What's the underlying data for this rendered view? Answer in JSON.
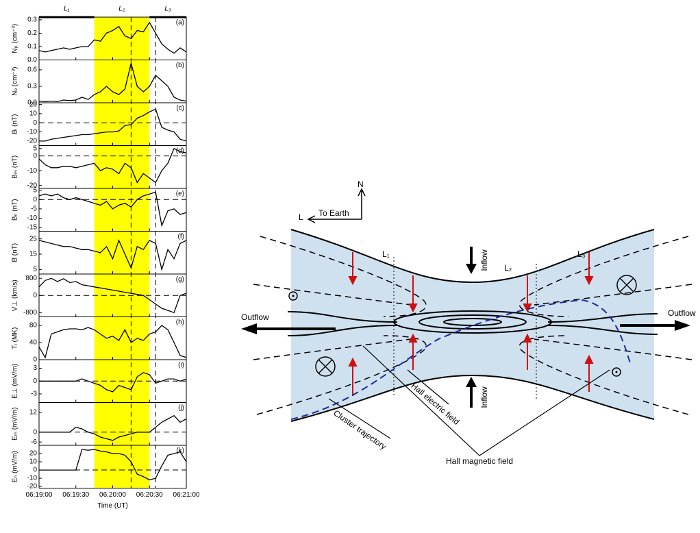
{
  "chart_data": [
    {
      "type": "line",
      "tag": "(a)",
      "ylabel": "Nₚ (cm⁻³)",
      "color": "#000000",
      "xlim": [
        "06:19:00",
        "06:21:00"
      ],
      "ylim": [
        0,
        0.32
      ],
      "yticks": [
        {
          "value": 0,
          "label": "0.0"
        },
        0.1,
        0.2,
        0.3
      ],
      "zero_line": false,
      "x": [
        "06:19:00",
        "06:19:05",
        "06:19:10",
        "06:19:15",
        "06:19:20",
        "06:19:25",
        "06:19:30",
        "06:19:35",
        "06:19:40",
        "06:19:45",
        "06:19:50",
        "06:19:55",
        "06:20:00",
        "06:20:05",
        "06:20:10",
        "06:20:15",
        "06:20:20",
        "06:20:25",
        "06:20:30",
        "06:20:35",
        "06:20:40",
        "06:20:45",
        "06:20:50",
        "06:20:55",
        "06:21:00"
      ],
      "values": [
        0.07,
        0.06,
        0.07,
        0.08,
        0.09,
        0.08,
        0.09,
        0.1,
        0.1,
        0.15,
        0.14,
        0.2,
        0.22,
        0.25,
        0.18,
        0.16,
        0.22,
        0.21,
        0.28,
        0.2,
        0.12,
        0.08,
        0.05,
        0.09,
        0.06
      ]
    },
    {
      "type": "line",
      "tag": "(b)",
      "ylabel": "Nₑ (cm⁻³)",
      "color": "#000000",
      "xlim": [
        "06:19:00",
        "06:21:00"
      ],
      "ylim": [
        0,
        0.78
      ],
      "yticks": [
        {
          "value": 0,
          "label": "0.0"
        },
        0.3,
        0.6
      ],
      "zero_line": false,
      "x": [
        "06:19:00",
        "06:19:05",
        "06:19:10",
        "06:19:15",
        "06:19:20",
        "06:19:25",
        "06:19:30",
        "06:19:35",
        "06:19:40",
        "06:19:45",
        "06:19:50",
        "06:19:55",
        "06:20:00",
        "06:20:05",
        "06:20:10",
        "06:20:15",
        "06:20:20",
        "06:20:25",
        "06:20:30",
        "06:20:35",
        "06:20:40",
        "06:20:45",
        "06:20:50",
        "06:20:55",
        "06:21:00"
      ],
      "values": [
        0.03,
        0.02,
        0.03,
        0.02,
        0.05,
        0.04,
        0.05,
        0.1,
        0.06,
        0.15,
        0.2,
        0.3,
        0.2,
        0.15,
        0.25,
        0.72,
        0.3,
        0.2,
        0.3,
        0.5,
        0.4,
        0.3,
        0.1,
        0.05,
        0.03
      ]
    },
    {
      "type": "line",
      "tag": "(c)",
      "ylabel": "Bₗ (nT)",
      "color": "#000000",
      "xlim": [
        "06:19:00",
        "06:21:00"
      ],
      "ylim": [
        -25,
        22
      ],
      "yticks": [
        -20,
        -10,
        0,
        10,
        20
      ],
      "zero_line": true,
      "x": [
        "06:19:00",
        "06:19:05",
        "06:19:10",
        "06:19:15",
        "06:19:20",
        "06:19:25",
        "06:19:30",
        "06:19:35",
        "06:19:40",
        "06:19:45",
        "06:19:50",
        "06:19:55",
        "06:20:00",
        "06:20:05",
        "06:20:10",
        "06:20:15",
        "06:20:20",
        "06:20:25",
        "06:20:30",
        "06:20:35",
        "06:20:40",
        "06:20:45",
        "06:20:50",
        "06:20:55",
        "06:21:00"
      ],
      "values": [
        -20,
        -20,
        -18,
        -17,
        -16,
        -15,
        -14,
        -13,
        -13,
        -12,
        -11,
        -10,
        -10,
        -9,
        -3,
        -2,
        5,
        8,
        12,
        15,
        -5,
        -8,
        -10,
        -18,
        -20
      ]
    },
    {
      "type": "line",
      "tag": "(d)",
      "ylabel": "Bₘ (nT)",
      "color": "#000000",
      "xlim": [
        "06:19:00",
        "06:21:00"
      ],
      "ylim": [
        -22,
        7
      ],
      "yticks": [
        -20,
        -10,
        0,
        5
      ],
      "zero_line": true,
      "x": [
        "06:19:00",
        "06:19:05",
        "06:19:10",
        "06:19:15",
        "06:19:20",
        "06:19:25",
        "06:19:30",
        "06:19:35",
        "06:19:40",
        "06:19:45",
        "06:19:50",
        "06:19:55",
        "06:20:00",
        "06:20:05",
        "06:20:10",
        "06:20:15",
        "06:20:20",
        "06:20:25",
        "06:20:30",
        "06:20:35",
        "06:20:40",
        "06:20:45",
        "06:20:50",
        "06:20:55",
        "06:21:00"
      ],
      "values": [
        -2,
        -6,
        -8,
        -8,
        -7,
        -7,
        -8,
        -7,
        -6,
        -5,
        -10,
        -8,
        -9,
        -12,
        -5,
        -8,
        -18,
        -12,
        -15,
        -18,
        -10,
        -5,
        5,
        3,
        2
      ]
    },
    {
      "type": "line",
      "tag": "(e)",
      "ylabel": "Bₙ (nT)",
      "color": "#000000",
      "xlim": [
        "06:19:00",
        "06:21:00"
      ],
      "ylim": [
        -17,
        6
      ],
      "yticks": [
        -15,
        -10,
        -5,
        0,
        5
      ],
      "zero_line": true,
      "x": [
        "06:19:00",
        "06:19:05",
        "06:19:10",
        "06:19:15",
        "06:19:20",
        "06:19:25",
        "06:19:30",
        "06:19:35",
        "06:19:40",
        "06:19:45",
        "06:19:50",
        "06:19:55",
        "06:20:00",
        "06:20:05",
        "06:20:10",
        "06:20:15",
        "06:20:20",
        "06:20:25",
        "06:20:30",
        "06:20:35",
        "06:20:40",
        "06:20:45",
        "06:20:50",
        "06:20:55",
        "06:21:00"
      ],
      "values": [
        2,
        3,
        2,
        3,
        1,
        0,
        1,
        0,
        -1,
        -2,
        -3,
        -1,
        -5,
        -3,
        -2,
        -4,
        0,
        2,
        3,
        4,
        -14,
        -6,
        -5,
        -8,
        -7
      ]
    },
    {
      "type": "line",
      "tag": "(f)",
      "ylabel": "B (nT)",
      "color": "#000000",
      "xlim": [
        "06:19:00",
        "06:21:00"
      ],
      "ylim": [
        2,
        30
      ],
      "yticks": [
        5,
        15,
        25
      ],
      "zero_line": false,
      "x": [
        "06:19:00",
        "06:19:05",
        "06:19:10",
        "06:19:15",
        "06:19:20",
        "06:19:25",
        "06:19:30",
        "06:19:35",
        "06:19:40",
        "06:19:45",
        "06:19:50",
        "06:19:55",
        "06:20:00",
        "06:20:05",
        "06:20:10",
        "06:20:15",
        "06:20:20",
        "06:20:25",
        "06:20:30",
        "06:20:35",
        "06:20:40",
        "06:20:45",
        "06:20:50",
        "06:20:55",
        "06:21:00"
      ],
      "values": [
        24,
        23,
        22,
        21,
        20,
        20,
        19,
        18,
        18,
        17,
        16,
        20,
        12,
        24,
        15,
        6,
        20,
        18,
        24,
        22,
        5,
        18,
        12,
        22,
        24
      ]
    },
    {
      "type": "line",
      "tag": "(g)",
      "ylabel": "V⊥ (km/s)",
      "color": "#000000",
      "xlim": [
        "06:19:00",
        "06:21:00"
      ],
      "ylim": [
        -1000,
        1000
      ],
      "yticks": [
        -800,
        0,
        800
      ],
      "zero_line": true,
      "x": [
        "06:19:00",
        "06:19:05",
        "06:19:10",
        "06:19:15",
        "06:19:20",
        "06:19:25",
        "06:19:30",
        "06:19:35",
        "06:19:40",
        "06:19:45",
        "06:19:50",
        "06:19:55",
        "06:20:00",
        "06:20:05",
        "06:20:10",
        "06:20:15",
        "06:20:20",
        "06:20:25",
        "06:20:30",
        "06:20:35",
        "06:20:40",
        "06:20:45",
        "06:20:50",
        "06:20:55",
        "06:21:00"
      ],
      "values": [
        400,
        700,
        800,
        650,
        780,
        600,
        650,
        500,
        450,
        400,
        350,
        300,
        250,
        200,
        150,
        100,
        50,
        0,
        -200,
        -400,
        -600,
        -700,
        -800,
        0,
        100
      ]
    },
    {
      "type": "line",
      "tag": "(h)",
      "ylabel": "Tᵢ (MK)",
      "color": "#000000",
      "xlim": [
        "06:19:00",
        "06:21:00"
      ],
      "ylim": [
        0,
        100
      ],
      "yticks": [
        0,
        40,
        80
      ],
      "zero_line": false,
      "x": [
        "06:19:00",
        "06:19:05",
        "06:19:10",
        "06:19:15",
        "06:19:20",
        "06:19:25",
        "06:19:30",
        "06:19:35",
        "06:19:40",
        "06:19:45",
        "06:19:50",
        "06:19:55",
        "06:20:00",
        "06:20:05",
        "06:20:10",
        "06:20:15",
        "06:20:20",
        "06:20:25",
        "06:20:30",
        "06:20:35",
        "06:20:40",
        "06:20:45",
        "06:20:50",
        "06:20:55",
        "06:21:00"
      ],
      "values": [
        30,
        5,
        60,
        65,
        70,
        72,
        72,
        70,
        75,
        70,
        60,
        50,
        55,
        45,
        70,
        40,
        50,
        45,
        60,
        65,
        80,
        70,
        40,
        10,
        5
      ]
    },
    {
      "type": "line",
      "tag": "(i)",
      "ylabel": "E⊥ (mV/m)",
      "color": "#000000",
      "xlim": [
        "06:19:00",
        "06:21:00"
      ],
      "ylim": [
        -5,
        5
      ],
      "yticks": [
        -3,
        0,
        3
      ],
      "zero_line": true,
      "x": [
        "06:19:00",
        "06:19:05",
        "06:19:10",
        "06:19:15",
        "06:19:20",
        "06:19:25",
        "06:19:30",
        "06:19:35",
        "06:19:40",
        "06:19:45",
        "06:19:50",
        "06:19:55",
        "06:20:00",
        "06:20:05",
        "06:20:10",
        "06:20:15",
        "06:20:20",
        "06:20:25",
        "06:20:30",
        "06:20:35",
        "06:20:40",
        "06:20:45",
        "06:20:50",
        "06:20:55",
        "06:21:00"
      ],
      "values": [
        0,
        0,
        0,
        0,
        0,
        0,
        0,
        0.5,
        0,
        -0.5,
        -1,
        -2,
        -2.5,
        -1,
        -1.5,
        -2,
        1,
        2,
        1.5,
        -0.5,
        0,
        0.5,
        0.5,
        0,
        0.5
      ]
    },
    {
      "type": "line",
      "tag": "(j)",
      "ylabel": "Eₘ (mV/m)",
      "color": "#000000",
      "xlim": [
        "06:19:00",
        "06:21:00"
      ],
      "ylim": [
        -8,
        18
      ],
      "yticks": [
        -6,
        0,
        12
      ],
      "zero_line": true,
      "x": [
        "06:19:00",
        "06:19:05",
        "06:19:10",
        "06:19:15",
        "06:19:20",
        "06:19:25",
        "06:19:30",
        "06:19:35",
        "06:19:40",
        "06:19:45",
        "06:19:50",
        "06:19:55",
        "06:20:00",
        "06:20:05",
        "06:20:10",
        "06:20:15",
        "06:20:20",
        "06:20:25",
        "06:20:30",
        "06:20:35",
        "06:20:40",
        "06:20:45",
        "06:20:50",
        "06:20:55",
        "06:21:00"
      ],
      "values": [
        0,
        0,
        0,
        0,
        0,
        0,
        3,
        2,
        0,
        -1,
        -3,
        -4,
        -5,
        -3,
        -2,
        -1,
        0,
        0,
        0,
        3,
        6,
        8,
        10,
        6,
        8
      ]
    },
    {
      "type": "line",
      "tag": "(k)",
      "ylabel": "Eₙ (mV/m)",
      "color": "#000000",
      "xlim": [
        "06:19:00",
        "06:21:00"
      ],
      "ylim": [
        -22,
        30
      ],
      "yticks": [
        -20,
        -10,
        0,
        10,
        20
      ],
      "zero_line": true,
      "xlabel": "Time (UT)",
      "xticks": [
        "06:19:00",
        "06:19:30",
        "06:20:00",
        "06:20:30",
        "06:21:00"
      ],
      "x": [
        "06:19:00",
        "06:19:05",
        "06:19:10",
        "06:19:15",
        "06:19:20",
        "06:19:25",
        "06:19:30",
        "06:19:35",
        "06:19:40",
        "06:19:45",
        "06:19:50",
        "06:19:55",
        "06:20:00",
        "06:20:05",
        "06:20:10",
        "06:20:15",
        "06:20:20",
        "06:20:25",
        "06:20:30",
        "06:20:35",
        "06:20:40",
        "06:20:45",
        "06:20:50",
        "06:20:55",
        "06:21:00"
      ],
      "values": [
        0,
        0,
        0,
        0,
        0,
        0,
        0,
        25,
        24,
        25,
        23,
        22,
        20,
        20,
        18,
        10,
        -5,
        -8,
        -12,
        -10,
        5,
        18,
        20,
        22,
        10
      ]
    }
  ],
  "time_marks": {
    "intervals": [
      {
        "label": "L₁",
        "start": "06:19:00",
        "end": "06:19:45"
      },
      {
        "label": "L₂",
        "start": "06:19:45",
        "end": "06:20:30",
        "color": "#ffff00"
      },
      {
        "label": "L₃",
        "start": "06:20:30",
        "end": "06:21:00"
      }
    ],
    "markers": [
      "06:20:15",
      "06:20:35"
    ]
  },
  "diagram": {
    "north": "N",
    "l_axis": "L",
    "earthward": "To Earth",
    "inflow": [
      "Inflow",
      "Inflow"
    ],
    "outflow": [
      "Outflow",
      "Outflow"
    ],
    "regions": [
      "L₁",
      "L₂",
      "L₃"
    ],
    "hall_electric_field": "Hall electric field",
    "cluster_trajectory": "Cluster trajectory",
    "hall_magnetic_field": "Hall  magnetic field"
  }
}
